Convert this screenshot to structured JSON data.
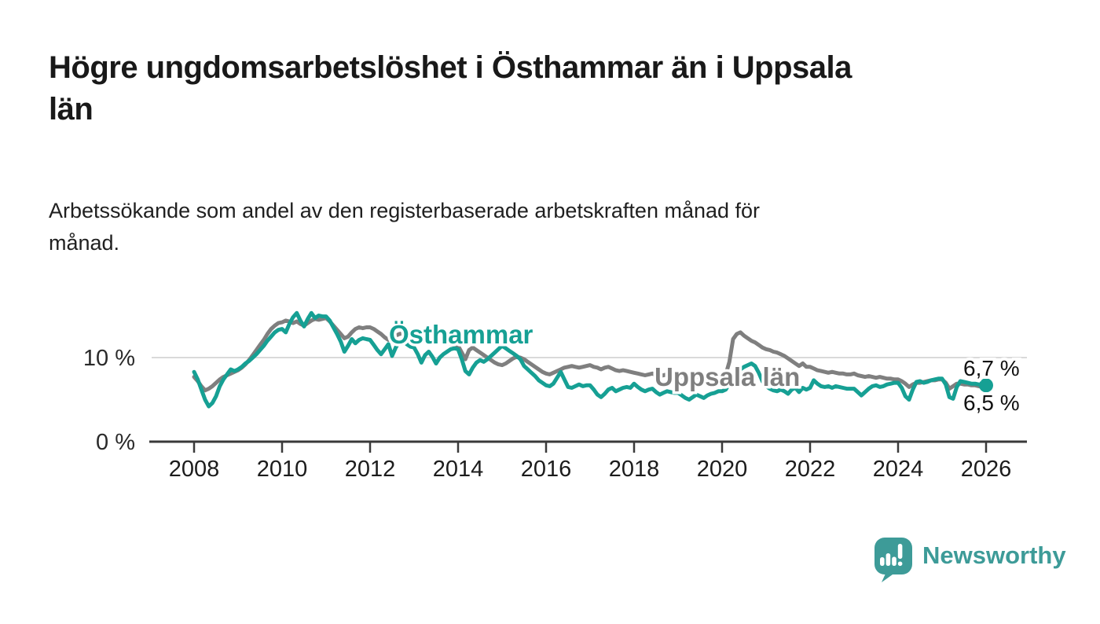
{
  "header": {
    "title": "Högre ungdomsarbetslöshet i Östhammar än i Uppsala\nlän",
    "subtitle": "Arbetssökande som andel av den registerbaserade arbetskraften månad för\nmånad."
  },
  "footer": {
    "brand": "Newsworthy",
    "logo_icon": "speech-bubble-bar-chart"
  },
  "colors": {
    "teal": "#16a094",
    "gray": "#7f7f7f",
    "logo_teal": "#3d9b98",
    "grid": "#d9d9d9",
    "axis": "#3a3a3a",
    "text": "#1f1f1f"
  },
  "chart_data": {
    "type": "line",
    "x_start_year": 2008,
    "x_interval": "monthly",
    "x_ticks": [
      2008,
      2010,
      2012,
      2014,
      2016,
      2018,
      2020,
      2022,
      2024,
      2026
    ],
    "ylim": [
      0,
      16
    ],
    "grid": "horizontal-10-only",
    "legend_position": "inline-labels",
    "y_axis": {
      "unit": "%",
      "ticks": [
        {
          "value": 0,
          "label": "0 %"
        },
        {
          "value": 10,
          "label": "10 %"
        }
      ]
    },
    "series": [
      {
        "name": "Uppsala län",
        "color": "#7f7f7f",
        "end_label": "6,5 %",
        "end_value": 6.5,
        "values": [
          7.7,
          7.2,
          6.6,
          6.1,
          6.3,
          6.6,
          7.0,
          7.4,
          7.7,
          7.9,
          8.1,
          8.3,
          8.5,
          8.8,
          9.2,
          9.7,
          10.3,
          10.9,
          11.5,
          12.1,
          12.8,
          13.4,
          13.8,
          14.1,
          14.2,
          14.4,
          14.3,
          14.1,
          14.3,
          14.0,
          13.8,
          14.1,
          14.4,
          14.6,
          14.5,
          14.6,
          14.7,
          14.3,
          13.8,
          13.3,
          12.8,
          12.3,
          12.5,
          13.0,
          13.4,
          13.6,
          13.5,
          13.6,
          13.6,
          13.4,
          13.1,
          12.8,
          12.4,
          12.1,
          12.3,
          12.6,
          12.8,
          12.9,
          12.7,
          12.8,
          12.8,
          12.6,
          12.4,
          12.5,
          12.3,
          12.0,
          11.8,
          11.9,
          12.0,
          11.8,
          11.6,
          11.5,
          11.4,
          10.6,
          9.8,
          10.9,
          11.2,
          10.9,
          10.6,
          10.3,
          10.0,
          9.7,
          9.4,
          9.2,
          9.1,
          9.3,
          9.6,
          9.9,
          10.1,
          10.0,
          9.8,
          9.5,
          9.2,
          8.9,
          8.6,
          8.3,
          8.1,
          8.0,
          8.2,
          8.4,
          8.6,
          8.8,
          8.9,
          9.0,
          8.9,
          8.8,
          8.9,
          9.0,
          9.1,
          8.9,
          8.8,
          8.6,
          8.8,
          8.9,
          8.7,
          8.5,
          8.4,
          8.5,
          8.4,
          8.3,
          8.2,
          8.1,
          8.0,
          7.9,
          8.0,
          8.1,
          7.9,
          7.8,
          7.9,
          8.0,
          7.9,
          7.8,
          7.8,
          7.7,
          7.6,
          7.7,
          7.8,
          7.7,
          7.8,
          7.9,
          8.0,
          8.0,
          7.9,
          7.8,
          7.8,
          8.0,
          9.5,
          12.2,
          12.8,
          13.0,
          12.6,
          12.3,
          12.0,
          11.8,
          11.5,
          11.2,
          11.0,
          10.9,
          10.7,
          10.6,
          10.4,
          10.2,
          9.9,
          9.6,
          9.3,
          9.0,
          9.3,
          8.9,
          8.9,
          8.7,
          8.5,
          8.4,
          8.3,
          8.2,
          8.3,
          8.2,
          8.1,
          8.1,
          8.0,
          8.0,
          8.1,
          7.9,
          7.8,
          7.7,
          7.8,
          7.7,
          7.6,
          7.7,
          7.6,
          7.5,
          7.5,
          7.4,
          7.4,
          7.2,
          6.9,
          6.5,
          6.8,
          7.0,
          7.0,
          7.1,
          7.2,
          7.3,
          7.3,
          7.4,
          7.4,
          7.0,
          6.3,
          6.6,
          6.9,
          6.9,
          6.8,
          6.8,
          6.7,
          6.7,
          6.6,
          6.5,
          6.5
        ]
      },
      {
        "name": "Östhammar",
        "color": "#16a094",
        "end_label": "6,7 %",
        "end_value": 6.7,
        "end_marker": true,
        "values": [
          8.3,
          7.4,
          6.2,
          5.0,
          4.2,
          4.6,
          5.4,
          6.6,
          7.4,
          8.0,
          8.6,
          8.4,
          8.6,
          8.9,
          9.3,
          9.6,
          10.0,
          10.4,
          10.9,
          11.4,
          12.0,
          12.5,
          13.0,
          13.3,
          13.4,
          13.0,
          14.0,
          14.8,
          15.3,
          14.4,
          13.7,
          14.6,
          15.3,
          14.7,
          15.0,
          14.9,
          14.9,
          14.4,
          13.6,
          12.8,
          11.9,
          10.7,
          11.4,
          12.2,
          11.7,
          12.1,
          12.3,
          12.2,
          12.1,
          11.5,
          10.9,
          10.4,
          11.0,
          11.6,
          10.2,
          11.2,
          11.9,
          12.0,
          11.6,
          11.3,
          11.2,
          10.4,
          9.4,
          10.3,
          10.7,
          10.1,
          9.3,
          10.0,
          10.4,
          10.7,
          11.0,
          11.1,
          11.0,
          9.8,
          8.4,
          8.0,
          8.8,
          9.4,
          9.7,
          9.5,
          9.8,
          10.2,
          10.6,
          11.0,
          11.4,
          11.1,
          10.8,
          10.5,
          10.2,
          9.8,
          9.0,
          8.6,
          8.2,
          7.8,
          7.3,
          7.0,
          6.7,
          6.6,
          6.9,
          7.6,
          8.3,
          7.4,
          6.5,
          6.4,
          6.6,
          6.8,
          6.6,
          6.7,
          6.7,
          6.2,
          5.6,
          5.3,
          5.7,
          6.2,
          6.4,
          6.0,
          6.2,
          6.4,
          6.5,
          6.4,
          6.9,
          6.5,
          6.2,
          6.0,
          6.2,
          6.3,
          5.9,
          5.6,
          5.8,
          6.0,
          5.9,
          5.8,
          5.8,
          5.5,
          5.2,
          5.0,
          5.3,
          5.6,
          5.4,
          5.2,
          5.5,
          5.7,
          5.8,
          6.0,
          6.0,
          6.2,
          6.9,
          7.6,
          8.2,
          8.6,
          8.9,
          9.1,
          9.3,
          9.0,
          8.2,
          7.2,
          6.6,
          6.3,
          6.1,
          6.0,
          6.2,
          6.0,
          5.7,
          6.2,
          6.4,
          5.9,
          6.4,
          6.2,
          6.4,
          7.3,
          6.9,
          6.6,
          6.5,
          6.6,
          6.4,
          6.6,
          6.5,
          6.4,
          6.3,
          6.3,
          6.3,
          5.9,
          5.5,
          5.9,
          6.3,
          6.6,
          6.7,
          6.5,
          6.6,
          6.8,
          6.9,
          7.0,
          7.0,
          6.4,
          5.4,
          5.0,
          6.2,
          7.1,
          7.2,
          7.0,
          7.1,
          7.3,
          7.4,
          7.5,
          7.5,
          6.8,
          5.3,
          5.1,
          6.5,
          7.2,
          7.1,
          7.0,
          6.9,
          6.9,
          6.8,
          6.7,
          6.7
        ]
      }
    ]
  }
}
